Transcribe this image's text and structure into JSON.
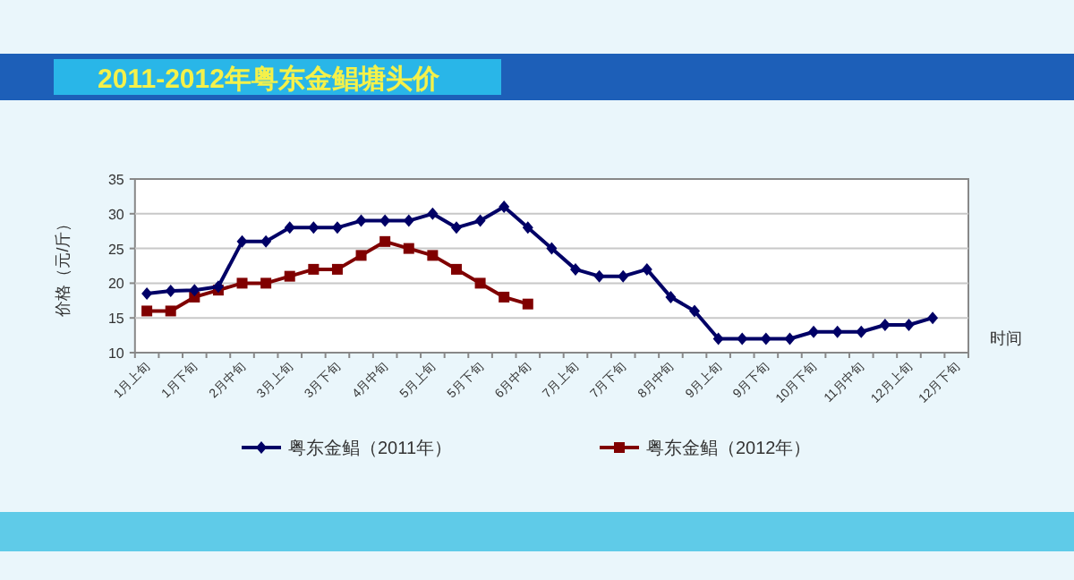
{
  "chart_data": {
    "type": "line",
    "title": "2011-2012年粤东金鲳塘头价",
    "ylabel": "价格（元/斤）",
    "xlabel": "时间",
    "categories": [
      "1月上旬",
      null,
      "1月下旬",
      null,
      "2月中旬",
      null,
      "3月上旬",
      null,
      "3月下旬",
      null,
      "4月中旬",
      null,
      "5月上旬",
      null,
      "5月下旬",
      null,
      "6月中旬",
      null,
      "7月上旬",
      null,
      "7月下旬",
      null,
      "8月中旬",
      null,
      "9月上旬",
      null,
      "9月下旬",
      null,
      "10月下旬",
      null,
      "11月中旬",
      null,
      "12月上旬",
      null,
      "12月下旬"
    ],
    "series": [
      {
        "name": "粤东金鲳（2011年）",
        "color": "#000066",
        "marker": "diamond",
        "values": [
          18.5,
          18.9,
          19,
          19.5,
          26,
          26,
          28,
          28,
          28,
          29,
          29,
          29,
          30,
          28,
          29,
          31,
          28,
          25,
          22,
          21,
          21,
          22,
          18,
          16,
          12,
          12,
          12,
          12,
          13,
          13,
          13,
          14,
          14,
          15,
          null
        ]
      },
      {
        "name": "粤东金鲳（2012年）",
        "color": "#800000",
        "marker": "square",
        "values": [
          16,
          16,
          18,
          19,
          20,
          20,
          21,
          22,
          22,
          24,
          26,
          25,
          24,
          22,
          20,
          18,
          17,
          null,
          null,
          null,
          null,
          null,
          null,
          null,
          null,
          null,
          null,
          null,
          null,
          null,
          null,
          null,
          null,
          null,
          null
        ]
      }
    ],
    "ylim": [
      10,
      35
    ],
    "yticks": [
      10,
      15,
      20,
      25,
      30,
      35
    ],
    "grid": "y",
    "legend": "bottom"
  }
}
